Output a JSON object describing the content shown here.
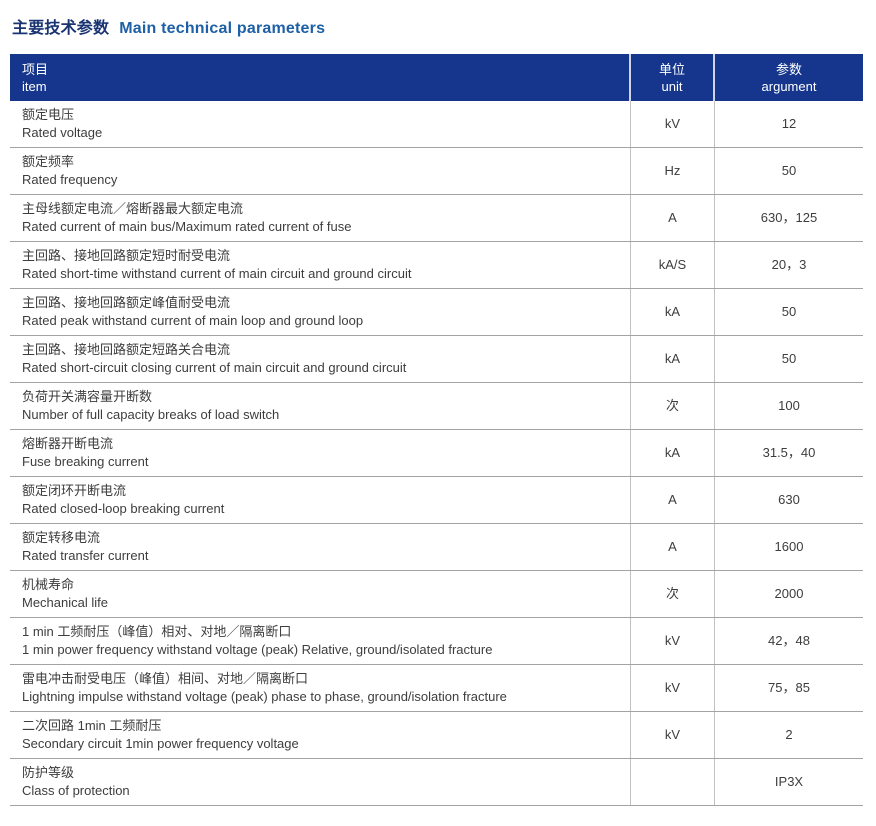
{
  "page": {
    "title_cn": "主要技术参数",
    "title_en": "Main technical parameters"
  },
  "colors": {
    "header_bg": "#15368c",
    "title_cn": "#1a3473",
    "title_en": "#1d60a6",
    "body_text": "#3d3d3d",
    "row_border": "#a3a3a3",
    "column_border": "#c2c2c2"
  },
  "table": {
    "header": {
      "item_cn": "项目",
      "item_en": "item",
      "unit_cn": "单位",
      "unit_en": "unit",
      "argument_cn": "参数",
      "argument_en": "argument"
    },
    "rows": [
      {
        "cn": "额定电压",
        "en": "Rated voltage",
        "unit": "kV",
        "value": "12"
      },
      {
        "cn": "额定频率",
        "en": "Rated frequency",
        "unit": "Hz",
        "value": "50"
      },
      {
        "cn": "主母线额定电流／熔断器最大额定电流",
        "en": "Rated current of main bus/Maximum rated current of fuse",
        "unit": "A",
        "value": "630，125"
      },
      {
        "cn": "主回路、接地回路额定短时耐受电流",
        "en": "Rated short-time withstand current of main circuit and ground circuit",
        "unit": "kA/S",
        "value": "20，3"
      },
      {
        "cn": "主回路、接地回路额定峰值耐受电流",
        "en": "Rated peak withstand current of main loop and ground loop",
        "unit": "kA",
        "value": "50"
      },
      {
        "cn": "主回路、接地回路额定短路关合电流",
        "en": "Rated short-circuit closing current of main circuit and ground circuit",
        "unit": "kA",
        "value": "50"
      },
      {
        "cn": "负荷开关满容量开断数",
        "en": "Number of full capacity breaks of load switch",
        "unit": "次",
        "value": "100"
      },
      {
        "cn": "熔断器开断电流",
        "en": "Fuse breaking current",
        "unit": "kA",
        "value": "31.5，40"
      },
      {
        "cn": "额定闭环开断电流",
        "en": "Rated closed-loop breaking current",
        "unit": "A",
        "value": "630"
      },
      {
        "cn": "额定转移电流",
        "en": "Rated transfer current",
        "unit": "A",
        "value": "1600"
      },
      {
        "cn": "机械寿命",
        "en": "Mechanical life",
        "unit": "次",
        "value": "2000"
      },
      {
        "cn": "1 min 工频耐压（峰值）相对、对地／隔离断口",
        "en": "1 min power frequency withstand voltage (peak) Relative, ground/isolated fracture",
        "unit": "kV",
        "value": "42，48"
      },
      {
        "cn": "雷电冲击耐受电压（峰值）相间、对地／隔离断口",
        "en": "Lightning impulse withstand voltage (peak) phase to phase, ground/isolation fracture",
        "unit": "kV",
        "value": "75，85"
      },
      {
        "cn": "二次回路 1min 工频耐压",
        "en": "Secondary circuit 1min power frequency voltage",
        "unit": "kV",
        "value": "2"
      },
      {
        "cn": "防护等级",
        "en": "Class of protection",
        "unit": "",
        "value": "IP3X"
      }
    ]
  }
}
